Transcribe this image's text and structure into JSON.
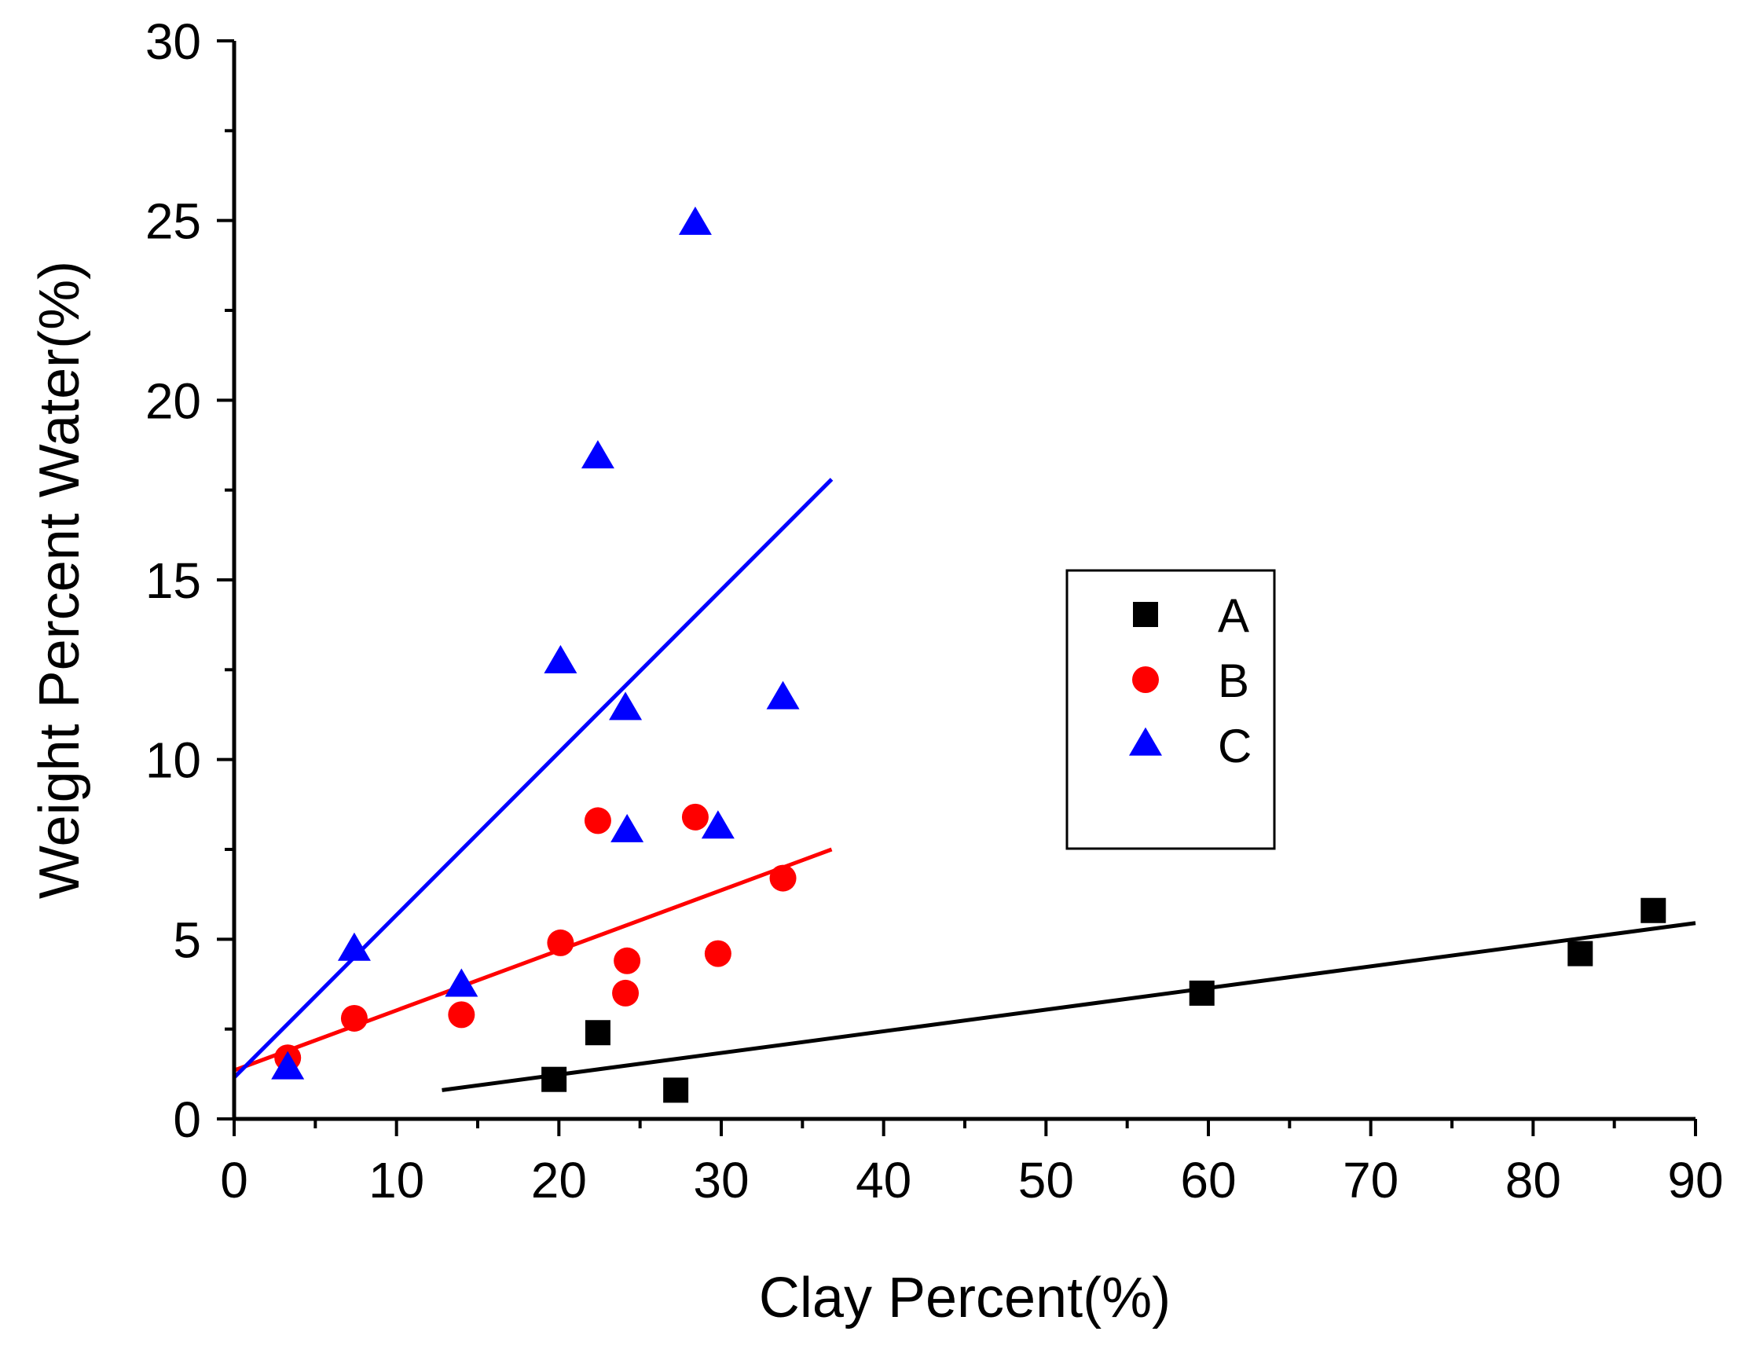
{
  "chart_data": {
    "type": "scatter",
    "title": "",
    "xlabel": "Clay Percent(%)",
    "ylabel": "Weight Percent Water(%)",
    "xlim": [
      0,
      90
    ],
    "ylim": [
      0,
      30
    ],
    "xticks": [
      0,
      10,
      20,
      30,
      40,
      50,
      60,
      70,
      80,
      90
    ],
    "yticks": [
      0,
      5,
      10,
      15,
      20,
      25,
      30
    ],
    "xtick_labels": [
      "0",
      "10",
      "20",
      "30",
      "40",
      "50",
      "60",
      "70",
      "80",
      "90"
    ],
    "ytick_labels": [
      "0",
      "5",
      "10",
      "15",
      "20",
      "25",
      "30"
    ],
    "grid": false,
    "legend_position": "center-right",
    "series": [
      {
        "name": "A",
        "marker": "square",
        "color": "#000000",
        "points": [
          [
            19.7,
            1.1
          ],
          [
            22.4,
            2.4
          ],
          [
            27.2,
            0.8
          ],
          [
            59.6,
            3.5
          ],
          [
            82.9,
            4.6
          ],
          [
            87.4,
            5.8
          ]
        ],
        "fit": {
          "x": [
            12.8,
            90.0
          ],
          "y": [
            0.8,
            5.45
          ]
        }
      },
      {
        "name": "B",
        "marker": "circle",
        "color": "#ff0000",
        "points": [
          [
            3.3,
            1.7
          ],
          [
            7.4,
            2.8
          ],
          [
            14.0,
            2.9
          ],
          [
            20.1,
            4.9
          ],
          [
            22.4,
            8.3
          ],
          [
            24.1,
            3.5
          ],
          [
            24.2,
            4.4
          ],
          [
            28.4,
            8.4
          ],
          [
            29.8,
            4.6
          ],
          [
            33.8,
            6.7
          ]
        ],
        "fit": {
          "x": [
            0.0,
            36.8
          ],
          "y": [
            1.35,
            7.5
          ]
        }
      },
      {
        "name": "C",
        "marker": "triangle",
        "color": "#0000ff",
        "points": [
          [
            3.3,
            1.4
          ],
          [
            7.4,
            4.7
          ],
          [
            14.0,
            3.7
          ],
          [
            20.1,
            12.7
          ],
          [
            22.4,
            18.4
          ],
          [
            24.1,
            11.4
          ],
          [
            24.2,
            8.0
          ],
          [
            28.4,
            24.9
          ],
          [
            29.8,
            8.1
          ],
          [
            33.8,
            11.7
          ]
        ],
        "fit": {
          "x": [
            0.0,
            36.8
          ],
          "y": [
            1.15,
            17.8
          ]
        }
      }
    ]
  }
}
